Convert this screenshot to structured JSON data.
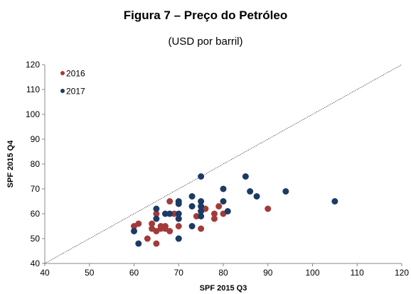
{
  "chart_data": {
    "type": "scatter",
    "title": "Figura 7 – Preço do Petróleo",
    "subtitle": "(USD por barril)",
    "x_label": "SPF 2015 Q3",
    "y_label": "SPF 2015 Q4",
    "xlim": [
      40,
      120
    ],
    "xticks": [
      40,
      50,
      60,
      70,
      80,
      90,
      100,
      110,
      120
    ],
    "ylim": [
      40,
      120
    ],
    "yticks": [
      40,
      50,
      60,
      70,
      80,
      90,
      100,
      110,
      120
    ],
    "legend": "upper left",
    "series": [
      {
        "name": "2016",
        "color": "#a33a3a",
        "x": [
          90,
          80,
          78,
          78,
          79,
          76,
          75,
          74,
          70,
          70,
          70,
          68,
          68,
          67,
          67,
          66,
          65,
          65,
          65,
          64,
          64,
          63,
          61,
          60,
          69,
          66
        ],
        "y": [
          62,
          60,
          60,
          58,
          63,
          62,
          54,
          59,
          58,
          55,
          50,
          65,
          53,
          54,
          55,
          55,
          60,
          53,
          48,
          56,
          54,
          50,
          56,
          55,
          60,
          54
        ]
      },
      {
        "name": "2017",
        "color": "#1c3a66",
        "x": [
          105,
          94,
          86,
          87.5,
          85,
          80,
          80,
          81,
          75,
          75,
          75,
          75,
          75,
          73,
          73,
          73,
          70,
          70,
          70,
          70,
          70,
          68,
          67,
          65,
          65,
          60,
          61
        ],
        "y": [
          65,
          69,
          69,
          67,
          75,
          70,
          65,
          61,
          75,
          65,
          63,
          61,
          59,
          67,
          63,
          55,
          65,
          64,
          60,
          58,
          50,
          60,
          60,
          62,
          58,
          53,
          48
        ]
      }
    ]
  }
}
